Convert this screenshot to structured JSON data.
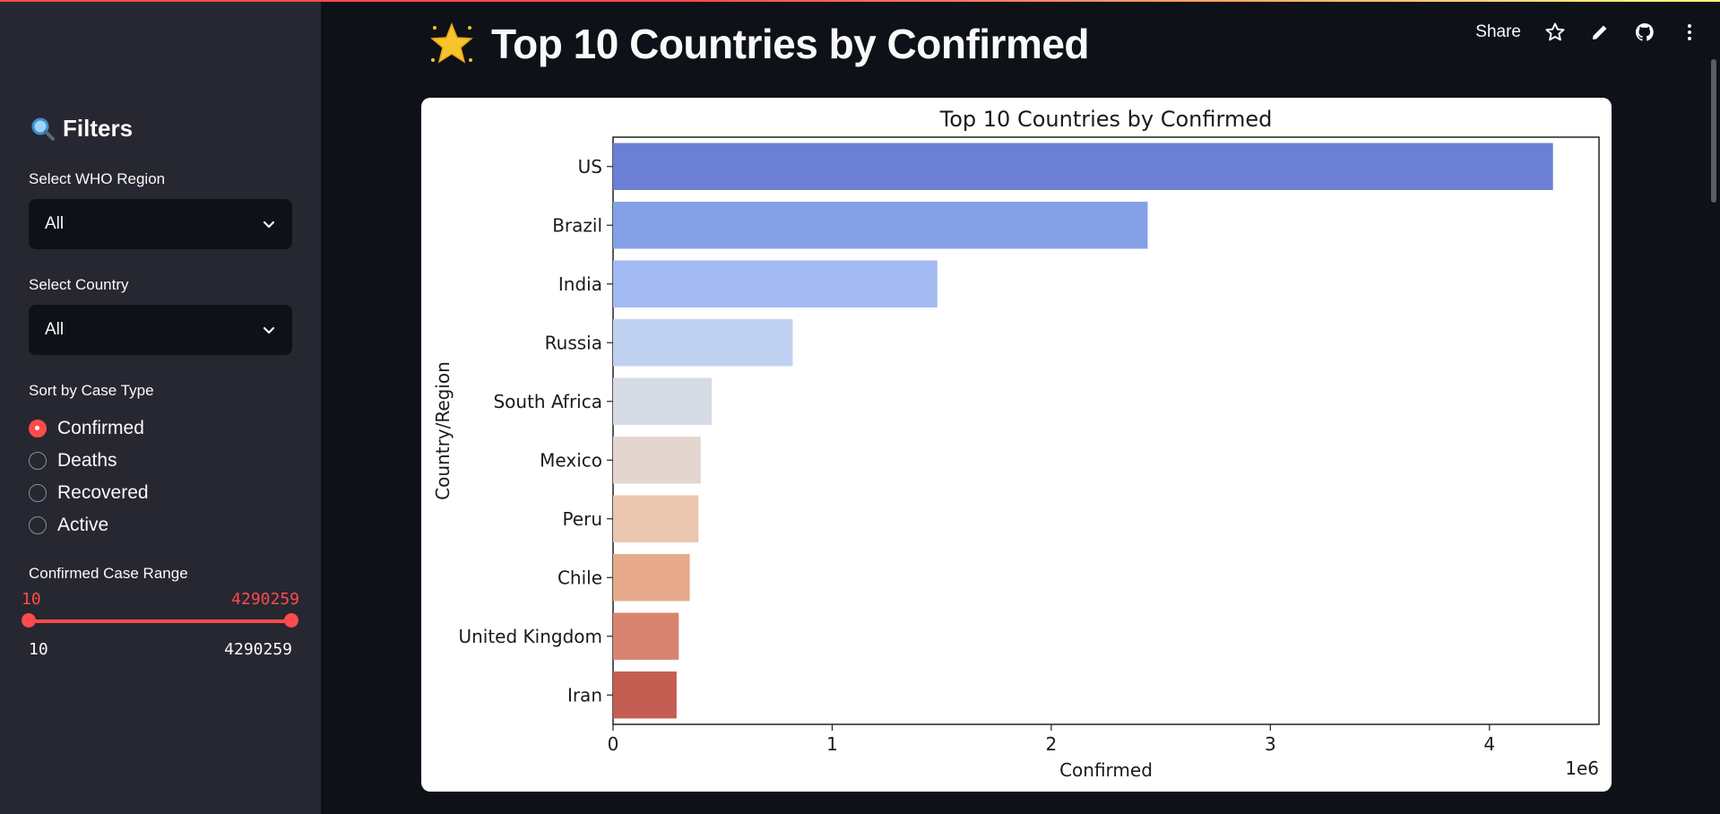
{
  "sidebar": {
    "title": "Filters",
    "region_label": "Select WHO Region",
    "region_value": "All",
    "country_label": "Select Country",
    "country_value": "All",
    "sort_label": "Sort by Case Type",
    "sort_options": [
      "Confirmed",
      "Deaths",
      "Recovered",
      "Active"
    ],
    "sort_selected": "Confirmed",
    "range_label": "Confirmed Case Range",
    "range_min_value": "10",
    "range_max_value": "4290259",
    "range_min_label": "10",
    "range_max_label": "4290259",
    "range_fraction": [
      0.0,
      1.0
    ]
  },
  "header": {
    "title": "Top 10 Countries by Confirmed",
    "share_label": "Share"
  },
  "icons": {
    "title_icon": "glowing-star-icon",
    "sidebar_icon": "magnifying-glass-icon",
    "toolbar": [
      "star-icon",
      "pencil-icon",
      "github-icon",
      "more-vertical-icon"
    ]
  },
  "colors": {
    "accent": "#ff4b4b",
    "sidebar_bg": "#262730",
    "main_bg": "#0e1117"
  },
  "chart_data": {
    "type": "bar",
    "orientation": "horizontal",
    "title": "Top 10 Countries by Confirmed",
    "xlabel": "Confirmed",
    "ylabel": "Country/Region",
    "x_offset_label": "1e6",
    "xlim": [
      0,
      4.5
    ],
    "xticks": [
      "0",
      "1",
      "2",
      "3",
      "4"
    ],
    "categories": [
      "US",
      "Brazil",
      "India",
      "Russia",
      "South Africa",
      "Mexico",
      "Peru",
      "Chile",
      "United Kingdom",
      "Iran"
    ],
    "values": [
      4.29,
      2.44,
      1.48,
      0.82,
      0.45,
      0.4,
      0.39,
      0.35,
      0.3,
      0.29
    ],
    "colors": [
      "#6b7fd4",
      "#85a0e6",
      "#a3bbf2",
      "#c0d0f0",
      "#d6dae4",
      "#e4d6cf",
      "#ebc6b0",
      "#e6a98c",
      "#d98470",
      "#c45e53"
    ]
  }
}
